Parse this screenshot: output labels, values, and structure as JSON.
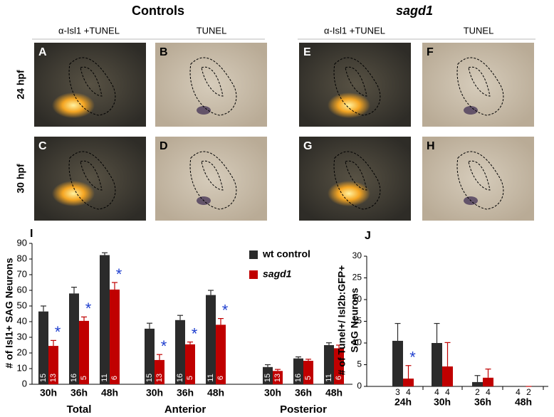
{
  "figure": {
    "column_groups": [
      {
        "title": "Controls",
        "columns": [
          "α-Isl1 +TUNEL",
          "TUNEL"
        ]
      },
      {
        "title": "sagd1",
        "columns": [
          "α-Isl1 +TUNEL",
          "TUNEL"
        ]
      }
    ],
    "rows": [
      "24 hpf",
      "30 hpf"
    ],
    "panel_letters": [
      [
        "A",
        "B",
        "E",
        "F"
      ],
      [
        "C",
        "D",
        "G",
        "H"
      ]
    ]
  },
  "chart_data": [
    {
      "type": "bar",
      "panel_letter": "I",
      "y_label": [
        "# of Isl1+ SAG Neurons"
      ],
      "categories": [
        "30h",
        "36h",
        "48h",
        "30h",
        "36h",
        "48h",
        "30h",
        "36h",
        "48h"
      ],
      "groups": [
        "Total",
        "Anterior",
        "Posterior"
      ],
      "ylim": [
        0,
        90
      ],
      "yticks": [
        0,
        10,
        20,
        30,
        40,
        50,
        60,
        70,
        80,
        90
      ],
      "legend": "upper right",
      "series": [
        {
          "name": "wt control",
          "color": "#2b2b2b",
          "values": [
            46.5,
            58,
            82.5,
            35.5,
            41,
            57,
            11,
            16.5,
            25
          ],
          "errors": [
            3.5,
            4,
            1.5,
            3.5,
            3,
            3,
            1.5,
            1,
            1.5
          ],
          "n": [
            15,
            16,
            11,
            15,
            16,
            11,
            15,
            16,
            11
          ]
        },
        {
          "name": "sagd1",
          "color": "#c00000",
          "values": [
            24.5,
            40.5,
            60.5,
            15.5,
            25.5,
            38,
            8.5,
            15,
            23
          ],
          "errors": [
            3.5,
            2.5,
            4.5,
            3.5,
            1.5,
            4,
            1,
            1,
            2
          ],
          "n": [
            13,
            5,
            6,
            13,
            5,
            6,
            13,
            5,
            6
          ],
          "annotations": [
            "*",
            "*",
            "*",
            "*",
            "*",
            "*",
            null,
            null,
            null
          ]
        }
      ]
    },
    {
      "type": "bar",
      "panel_letter": "J",
      "y_label": [
        "# of Tunel+/ Isl2b:GFP+",
        "SAG Neurons"
      ],
      "categories": [
        "24h",
        "30h",
        "36h",
        "48h"
      ],
      "ylim": [
        0,
        30
      ],
      "yticks": [
        0,
        5,
        10,
        15,
        20,
        25,
        30
      ],
      "series": [
        {
          "name": "wt control",
          "color": "#2b2b2b",
          "values": [
            10.5,
            10,
            1,
            0
          ],
          "errors": [
            4,
            4.5,
            1.5,
            0
          ],
          "n": [
            3,
            4,
            2,
            4
          ]
        },
        {
          "name": "sagd1",
          "color": "#c00000",
          "values": [
            1.8,
            4.6,
            2,
            0
          ],
          "errors": [
            3,
            5.5,
            2,
            0
          ],
          "n": [
            4,
            4,
            4,
            2
          ],
          "annotations": [
            "*",
            null,
            null,
            null
          ]
        }
      ]
    }
  ]
}
